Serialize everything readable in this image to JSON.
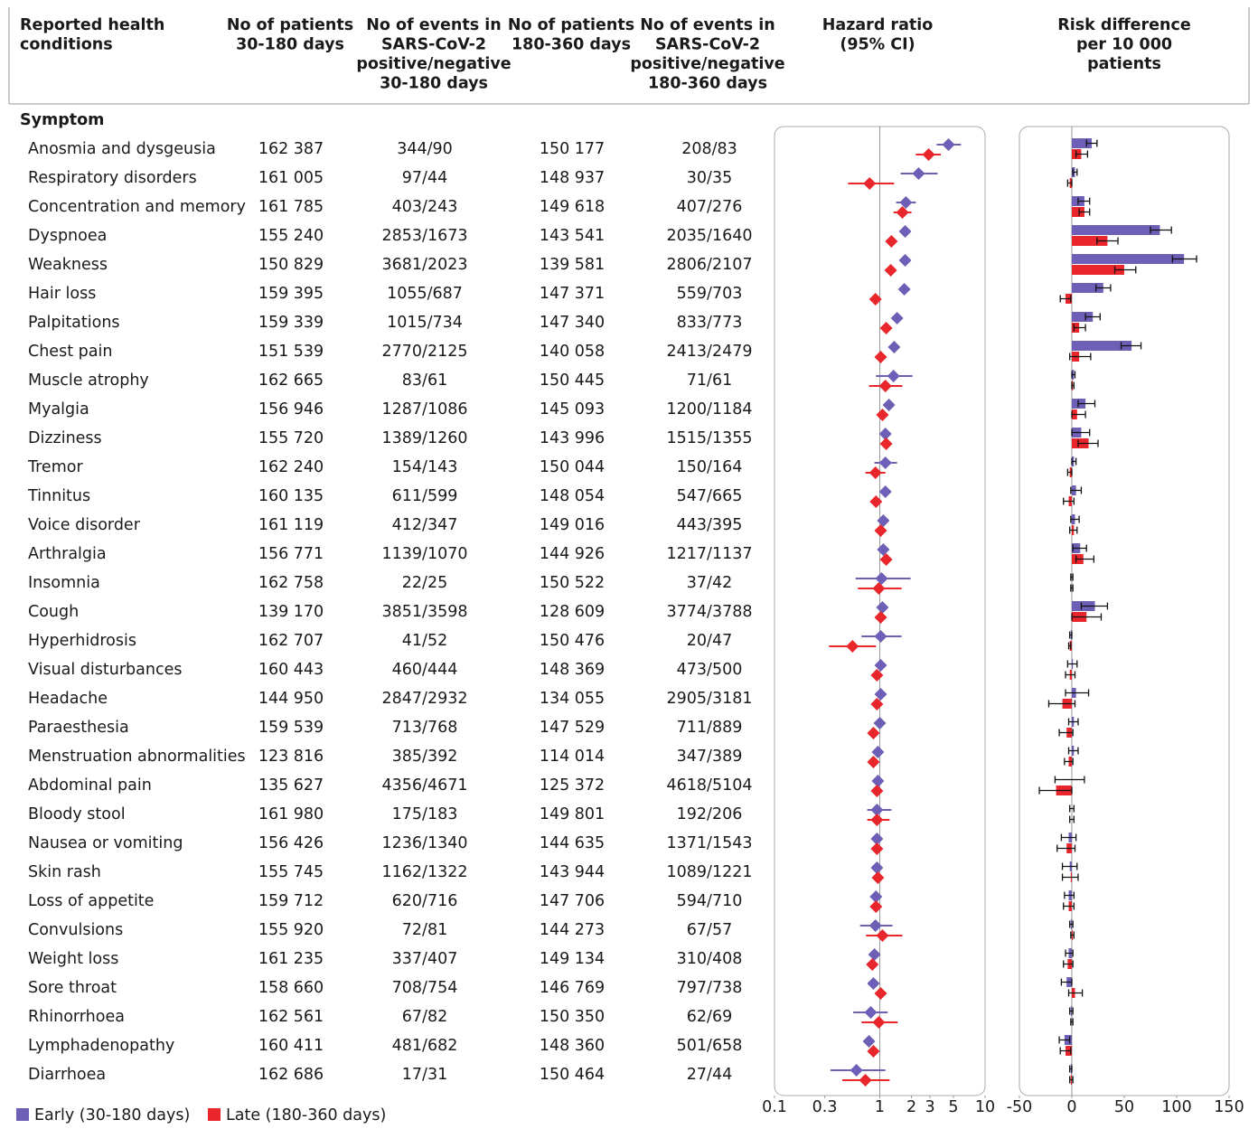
{
  "chart_data": {
    "type": "forest",
    "columns": [
      [
        "Reported health",
        "conditions"
      ],
      [
        "No of patients",
        "30-180 days"
      ],
      [
        "No of events in",
        "SARS-CoV-2",
        "positive/negative",
        "30-180 days"
      ],
      [
        "No of patients",
        "180-360 days"
      ],
      [
        "No of events in",
        "SARS-CoV-2",
        "positive/negative",
        "180-360 days"
      ],
      [
        "Hazard ratio",
        "(95% CI)"
      ],
      [
        "Risk difference",
        "per 10 000",
        "patients"
      ]
    ],
    "section": "Symptom",
    "rows": [
      {
        "condition": "Anosmia and dysgeusia",
        "n_early": "162 387",
        "events_early": "344/90",
        "n_late": "150 177",
        "events_late": "208/83"
      },
      {
        "condition": "Respiratory disorders",
        "n_early": "161 005",
        "events_early": "97/44",
        "n_late": "148 937",
        "events_late": "30/35"
      },
      {
        "condition": "Concentration and memory",
        "n_early": "161 785",
        "events_early": "403/243",
        "n_late": "149 618",
        "events_late": "407/276"
      },
      {
        "condition": "Dyspnoea",
        "n_early": "155 240",
        "events_early": "2853/1673",
        "n_late": "143 541",
        "events_late": "2035/1640"
      },
      {
        "condition": "Weakness",
        "n_early": "150 829",
        "events_early": "3681/2023",
        "n_late": "139 581",
        "events_late": "2806/2107"
      },
      {
        "condition": "Hair loss",
        "n_early": "159 395",
        "events_early": "1055/687",
        "n_late": "147 371",
        "events_late": "559/703"
      },
      {
        "condition": "Palpitations",
        "n_early": "159 339",
        "events_early": "1015/734",
        "n_late": "147 340",
        "events_late": "833/773"
      },
      {
        "condition": "Chest pain",
        "n_early": "151 539",
        "events_early": "2770/2125",
        "n_late": "140 058",
        "events_late": "2413/2479"
      },
      {
        "condition": "Muscle atrophy",
        "n_early": "162 665",
        "events_early": "83/61",
        "n_late": "150 445",
        "events_late": "71/61"
      },
      {
        "condition": "Myalgia",
        "n_early": "156 946",
        "events_early": "1287/1086",
        "n_late": "145 093",
        "events_late": "1200/1184"
      },
      {
        "condition": "Dizziness",
        "n_early": "155 720",
        "events_early": "1389/1260",
        "n_late": "143 996",
        "events_late": "1515/1355"
      },
      {
        "condition": "Tremor",
        "n_early": "162 240",
        "events_early": "154/143",
        "n_late": "150 044",
        "events_late": "150/164"
      },
      {
        "condition": "Tinnitus",
        "n_early": "160 135",
        "events_early": "611/599",
        "n_late": "148 054",
        "events_late": "547/665"
      },
      {
        "condition": "Voice disorder",
        "n_early": "161 119",
        "events_early": "412/347",
        "n_late": "149 016",
        "events_late": "443/395"
      },
      {
        "condition": "Arthralgia",
        "n_early": "156 771",
        "events_early": "1139/1070",
        "n_late": "144 926",
        "events_late": "1217/1137"
      },
      {
        "condition": "Insomnia",
        "n_early": "162 758",
        "events_early": "22/25",
        "n_late": "150 522",
        "events_late": "37/42"
      },
      {
        "condition": "Cough",
        "n_early": "139 170",
        "events_early": "3851/3598",
        "n_late": "128 609",
        "events_late": "3774/3788"
      },
      {
        "condition": "Hyperhidrosis",
        "n_early": "162 707",
        "events_early": "41/52",
        "n_late": "150 476",
        "events_late": "20/47"
      },
      {
        "condition": "Visual disturbances",
        "n_early": "160 443",
        "events_early": "460/444",
        "n_late": "148 369",
        "events_late": "473/500"
      },
      {
        "condition": "Headache",
        "n_early": "144 950",
        "events_early": "2847/2932",
        "n_late": "134 055",
        "events_late": "2905/3181"
      },
      {
        "condition": "Paraesthesia",
        "n_early": "159 539",
        "events_early": "713/768",
        "n_late": "147 529",
        "events_late": "711/889"
      },
      {
        "condition": "Menstruation abnormalities",
        "n_early": "123 816",
        "events_early": "385/392",
        "n_late": "114 014",
        "events_late": "347/389"
      },
      {
        "condition": "Abdominal pain",
        "n_early": "135 627",
        "events_early": "4356/4671",
        "n_late": "125 372",
        "events_late": "4618/5104"
      },
      {
        "condition": "Bloody stool",
        "n_early": "161 980",
        "events_early": "175/183",
        "n_late": "149 801",
        "events_late": "192/206"
      },
      {
        "condition": "Nausea or vomiting",
        "n_early": "156 426",
        "events_early": "1236/1340",
        "n_late": "144 635",
        "events_late": "1371/1543"
      },
      {
        "condition": "Skin rash",
        "n_early": "155 745",
        "events_early": "1162/1322",
        "n_late": "143 944",
        "events_late": "1089/1221"
      },
      {
        "condition": "Loss of appetite",
        "n_early": "159 712",
        "events_early": "620/716",
        "n_late": "147 706",
        "events_late": "594/710"
      },
      {
        "condition": "Convulsions",
        "n_early": "155 920",
        "events_early": "72/81",
        "n_late": "144 273",
        "events_late": "67/57"
      },
      {
        "condition": "Weight loss",
        "n_early": "161 235",
        "events_early": "337/407",
        "n_late": "149 134",
        "events_late": "310/408"
      },
      {
        "condition": "Sore throat",
        "n_early": "158 660",
        "events_early": "708/754",
        "n_late": "146 769",
        "events_late": "797/738"
      },
      {
        "condition": "Rhinorrhoea",
        "n_early": "162 561",
        "events_early": "67/82",
        "n_late": "150 350",
        "events_late": "62/69"
      },
      {
        "condition": "Lymphadenopathy",
        "n_early": "160 411",
        "events_early": "481/682",
        "n_late": "148 360",
        "events_late": "501/658"
      },
      {
        "condition": "Diarrhoea",
        "n_early": "162 686",
        "events_early": "17/31",
        "n_late": "150 464",
        "events_late": "27/44"
      }
    ],
    "series": [
      {
        "name": "Early (30-180 days)",
        "color": "#6c5fb5",
        "hr": [
          4.49,
          2.34,
          1.77,
          1.74,
          1.74,
          1.71,
          1.46,
          1.37,
          1.35,
          1.22,
          1.13,
          1.13,
          1.13,
          1.08,
          1.08,
          1.04,
          1.06,
          1.02,
          1.02,
          1.02,
          1.0,
          0.96,
          0.96,
          0.94,
          0.94,
          0.94,
          0.92,
          0.91,
          0.89,
          0.87,
          0.82,
          0.79,
          0.6
        ],
        "hr_lo": [
          3.47,
          1.58,
          1.43,
          1.64,
          1.66,
          1.58,
          1.32,
          1.3,
          0.92,
          1.13,
          1.05,
          0.89,
          1.03,
          0.97,
          1.0,
          0.59,
          1.02,
          0.67,
          0.93,
          0.98,
          0.93,
          0.86,
          0.91,
          0.76,
          0.88,
          0.88,
          0.84,
          0.65,
          0.8,
          0.81,
          0.56,
          0.72,
          0.34
        ],
        "hr_hi": [
          5.9,
          3.54,
          2.2,
          1.85,
          1.83,
          1.86,
          1.62,
          1.45,
          2.04,
          1.32,
          1.22,
          1.46,
          1.24,
          1.2,
          1.17,
          1.96,
          1.1,
          1.61,
          1.12,
          1.07,
          1.07,
          1.08,
          1.02,
          1.29,
          1.01,
          1.0,
          1.01,
          1.32,
          1.0,
          0.94,
          1.19,
          0.87,
          1.13
        ],
        "rd": [
          19,
          3,
          12,
          84,
          107,
          30,
          20,
          57,
          2,
          13,
          9,
          2,
          4,
          3,
          8,
          0,
          22,
          -1,
          1,
          4,
          2,
          2,
          0,
          0,
          -3,
          -2,
          -3,
          -1,
          -3,
          -5,
          -1,
          -7,
          -1
        ],
        "rd_lo": [
          14,
          1,
          6,
          75,
          96,
          23,
          13,
          47,
          0,
          6,
          0,
          0,
          -1,
          -1,
          1,
          -1,
          9,
          -2,
          -4,
          -6,
          -3,
          -3,
          -16,
          -2,
          -10,
          -9,
          -7,
          -2,
          -6,
          -10,
          -2,
          -12,
          -2
        ],
        "rd_hi": [
          24,
          5,
          17,
          95,
          119,
          37,
          27,
          66,
          3,
          22,
          17,
          4,
          9,
          7,
          14,
          1,
          34,
          0,
          5,
          16,
          6,
          6,
          12,
          2,
          4,
          5,
          2,
          1,
          1,
          0,
          1,
          -2,
          0
        ]
      },
      {
        "name": "Late (180-360 days)",
        "color": "#e8262b",
        "hr": [
          2.91,
          0.8,
          1.64,
          1.29,
          1.27,
          0.91,
          1.15,
          1.02,
          1.13,
          1.06,
          1.15,
          0.91,
          0.92,
          1.02,
          1.15,
          0.98,
          1.02,
          0.55,
          0.94,
          0.94,
          0.87,
          0.87,
          0.94,
          0.94,
          0.94,
          0.96,
          0.92,
          1.06,
          0.85,
          1.02,
          0.98,
          0.87,
          0.73
        ],
        "hr_lo": [
          2.2,
          0.5,
          1.35,
          1.19,
          1.18,
          0.82,
          1.05,
          0.96,
          0.79,
          0.99,
          1.07,
          0.73,
          0.83,
          0.92,
          1.06,
          0.62,
          0.97,
          0.33,
          0.86,
          0.9,
          0.8,
          0.78,
          0.9,
          0.76,
          0.87,
          0.87,
          0.84,
          0.74,
          0.77,
          0.94,
          0.67,
          0.8,
          0.44
        ],
        "hr_hi": [
          3.8,
          1.37,
          2.0,
          1.4,
          1.37,
          1.0,
          1.26,
          1.08,
          1.64,
          1.14,
          1.24,
          1.13,
          1.01,
          1.12,
          1.24,
          1.61,
          1.07,
          0.92,
          1.03,
          0.98,
          0.94,
          0.96,
          0.98,
          1.24,
          1.01,
          1.05,
          1.0,
          1.64,
          0.93,
          1.1,
          1.48,
          0.94,
          1.24
        ],
        "rd": [
          9,
          -2,
          12,
          34,
          50,
          -6,
          7,
          7,
          1,
          5,
          16,
          -2,
          -3,
          2,
          11,
          0,
          14,
          -2,
          -2,
          -9,
          -5,
          -3,
          -15,
          0,
          -5,
          -1,
          -3,
          1,
          -4,
          3,
          0,
          -6,
          -1
        ],
        "rd_lo": [
          4,
          -4,
          7,
          24,
          41,
          -11,
          2,
          -2,
          0,
          0,
          6,
          -4,
          -8,
          -2,
          4,
          -1,
          0,
          -3,
          -6,
          -22,
          -12,
          -7,
          -31,
          -2,
          -14,
          -9,
          -8,
          -1,
          -8,
          -3,
          -1,
          -11,
          -2
        ],
        "rd_hi": [
          15,
          0,
          17,
          44,
          61,
          -1,
          13,
          18,
          2,
          13,
          25,
          0,
          2,
          5,
          21,
          1,
          28,
          -1,
          3,
          3,
          1,
          1,
          0,
          2,
          3,
          6,
          2,
          2,
          1,
          10,
          1,
          -1,
          1
        ]
      }
    ],
    "hr_log": true,
    "hr_xlim": [
      0.1,
      10
    ],
    "hr_xticks": [
      0.1,
      0.3,
      1,
      2,
      3,
      5,
      10
    ],
    "rd_xlim": [
      -50,
      150
    ],
    "rd_xticks": [
      -50,
      0,
      50,
      100,
      150
    ]
  }
}
